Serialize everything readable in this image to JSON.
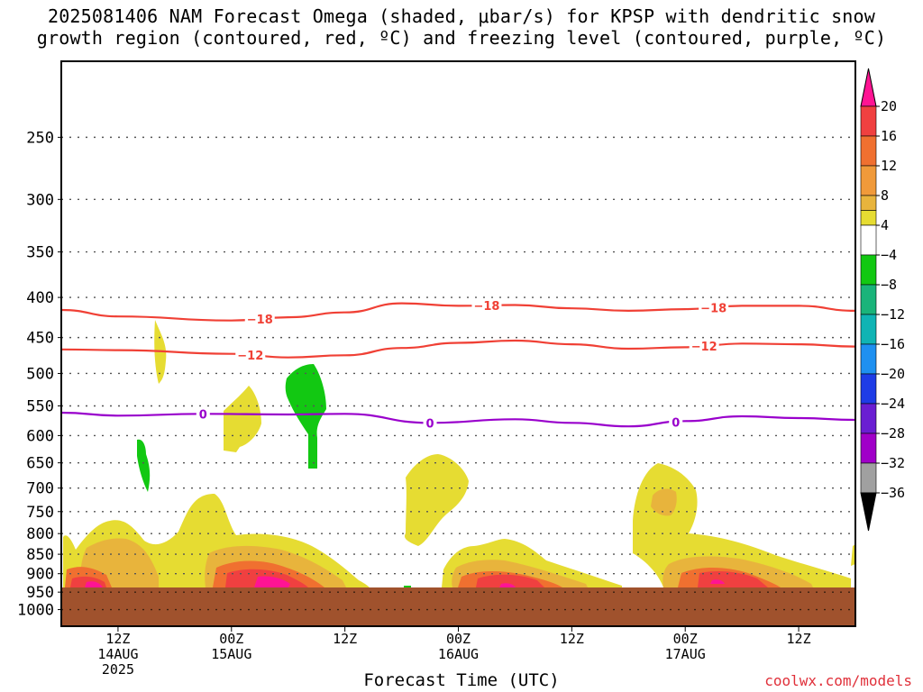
{
  "title_line1": "2025081406 NAM Forecast Omega (shaded, μbar/s) for KPSP with dendritic snow",
  "title_line2": "growth region (contoured, red, ºC) and freezing level (contoured, purple, ºC)",
  "xlabel": "Forecast Time (UTC)",
  "credit": "coolwx.com/models",
  "colors": {
    "ground": "#a0522d",
    "dendritic_contour": "#f04035",
    "freezing_contour": "#9900cc",
    "grid": "#555555"
  },
  "chart_data": {
    "type": "heatmap",
    "y_axis": {
      "label": "",
      "scale": "log-pressure",
      "inverted": true,
      "range": [
        1050,
        200
      ],
      "ticks": [
        250,
        300,
        350,
        400,
        450,
        500,
        550,
        600,
        650,
        700,
        750,
        800,
        850,
        900,
        950,
        1000
      ]
    },
    "x_axis": {
      "start": "2025-08-14 06Z",
      "end": "2025-08-17 18Z",
      "ticks": [
        {
          "time": "2025-08-14 12Z",
          "lines": [
            "12Z",
            "14AUG",
            "2025"
          ]
        },
        {
          "time": "2025-08-15 00Z",
          "lines": [
            "00Z",
            "15AUG"
          ]
        },
        {
          "time": "2025-08-15 12Z",
          "lines": [
            "12Z"
          ]
        },
        {
          "time": "2025-08-16 00Z",
          "lines": [
            "00Z",
            "16AUG"
          ]
        },
        {
          "time": "2025-08-16 12Z",
          "lines": [
            "12Z"
          ]
        },
        {
          "time": "2025-08-17 00Z",
          "lines": [
            "00Z",
            "17AUG"
          ]
        },
        {
          "time": "2025-08-17 12Z",
          "lines": [
            "12Z"
          ]
        }
      ]
    },
    "colorbar": {
      "levels": [
        20,
        16,
        12,
        8,
        4,
        -4,
        -8,
        -12,
        -16,
        -20,
        -24,
        -28,
        -32,
        -36
      ],
      "colors": [
        "#ff1493",
        "#f04040",
        "#f07030",
        "#f09a3a",
        "#e8b43c",
        "#e6dc32",
        "#ffffff",
        "#12c812",
        "#1ab47a",
        "#10b4b4",
        "#1e90f0",
        "#1e3ce6",
        "#6a1ed2",
        "#a000c8",
        "#a0a0a0",
        "#000000"
      ]
    },
    "contours": [
      {
        "name": "-18",
        "color": "dendritic",
        "label_times": [
          "2025-08-15 03Z",
          "2025-08-16 03Z",
          "2025-08-17 03Z"
        ],
        "points": [
          [
            "2025-08-14 06Z",
            415
          ],
          [
            "2025-08-14 12Z",
            423
          ],
          [
            "2025-08-15 00Z",
            428
          ],
          [
            "2025-08-15 06Z",
            424
          ],
          [
            "2025-08-15 12Z",
            418
          ],
          [
            "2025-08-15 18Z",
            407
          ],
          [
            "2025-08-16 00Z",
            410
          ],
          [
            "2025-08-16 06Z",
            409
          ],
          [
            "2025-08-16 12Z",
            413
          ],
          [
            "2025-08-16 18Z",
            416
          ],
          [
            "2025-08-17 00Z",
            414
          ],
          [
            "2025-08-17 06Z",
            410
          ],
          [
            "2025-08-17 12Z",
            410
          ],
          [
            "2025-08-17 18Z",
            416
          ]
        ]
      },
      {
        "name": "-12",
        "color": "dendritic",
        "label_times": [
          "2025-08-15 02Z",
          "2025-08-17 02Z"
        ],
        "points": [
          [
            "2025-08-14 06Z",
            466
          ],
          [
            "2025-08-14 12Z",
            467
          ],
          [
            "2025-08-15 00Z",
            472
          ],
          [
            "2025-08-15 06Z",
            477
          ],
          [
            "2025-08-15 12Z",
            474
          ],
          [
            "2025-08-15 18Z",
            464
          ],
          [
            "2025-08-16 00Z",
            457
          ],
          [
            "2025-08-16 06Z",
            454
          ],
          [
            "2025-08-16 12Z",
            459
          ],
          [
            "2025-08-16 18Z",
            465
          ],
          [
            "2025-08-17 00Z",
            463
          ],
          [
            "2025-08-17 06Z",
            458
          ],
          [
            "2025-08-17 12Z",
            459
          ],
          [
            "2025-08-17 18Z",
            462
          ]
        ]
      },
      {
        "name": "0",
        "color": "freezing",
        "label_times": [
          "2025-08-14 21Z",
          "2025-08-15 21Z",
          "2025-08-16 23Z"
        ],
        "points": [
          [
            "2025-08-14 06Z",
            561
          ],
          [
            "2025-08-14 12Z",
            566
          ],
          [
            "2025-08-14 21Z",
            563
          ],
          [
            "2025-08-15 06Z",
            564
          ],
          [
            "2025-08-15 12Z",
            563
          ],
          [
            "2025-08-15 21Z",
            578
          ],
          [
            "2025-08-16 06Z",
            572
          ],
          [
            "2025-08-16 12Z",
            578
          ],
          [
            "2025-08-16 18Z",
            584
          ],
          [
            "2025-08-17 00Z",
            575
          ],
          [
            "2025-08-17 06Z",
            567
          ],
          [
            "2025-08-17 12Z",
            570
          ],
          [
            "2025-08-17 18Z",
            573
          ]
        ]
      }
    ]
  }
}
